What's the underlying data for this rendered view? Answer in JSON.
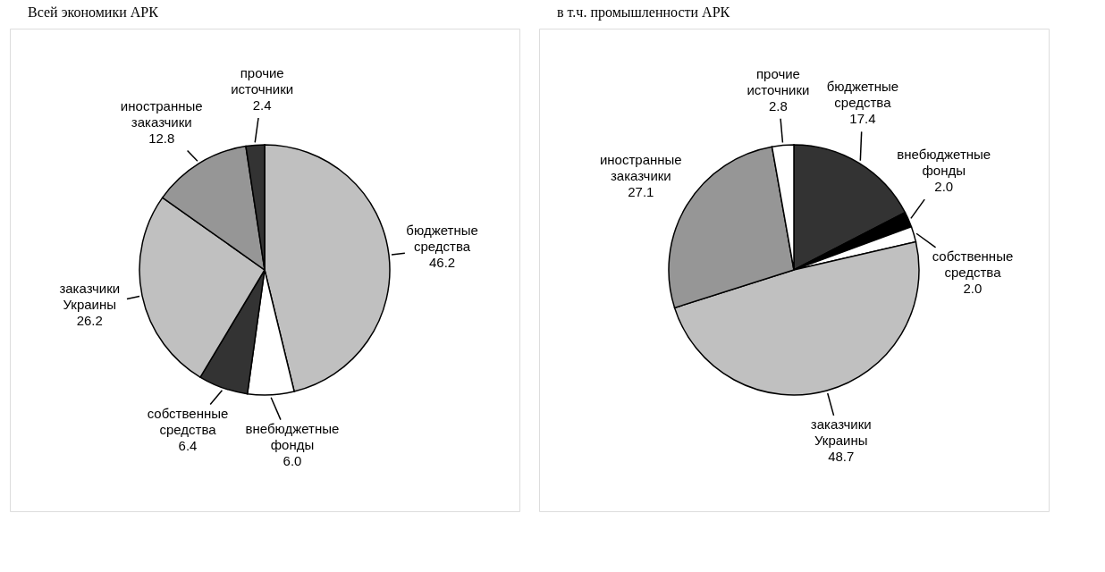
{
  "chart_data": [
    {
      "type": "pie",
      "title": "Всей экономики АРК",
      "categories": [
        "бюджетные средства",
        "внебюджетные фонды",
        "собственные средства",
        "заказчики Украины",
        "иностранные заказчики",
        "прочие источники"
      ],
      "values": [
        46.2,
        6.0,
        6.4,
        26.2,
        12.8,
        2.4
      ],
      "value_labels": [
        "46.2",
        "6.0",
        "6.4",
        "26.2",
        "12.8",
        "2.4"
      ],
      "colors": [
        "#c0c0c0",
        "#ffffff",
        "#333333",
        "#c0c0c0",
        "#969696",
        "#333333"
      ]
    },
    {
      "type": "pie",
      "title": "в т.ч. промышленности АРК",
      "categories": [
        "бюджетные средства",
        "внебюджетные фонды",
        "собственные средства",
        "заказчики Украины",
        "иностранные заказчики",
        "прочие источники"
      ],
      "values": [
        17.4,
        2.0,
        2.0,
        48.7,
        27.1,
        2.8
      ],
      "value_labels": [
        "17.4",
        "2.0",
        "2.0",
        "48.7",
        "27.1",
        "2.8"
      ],
      "colors": [
        "#333333",
        "#000000",
        "#ffffff",
        "#c0c0c0",
        "#969696",
        "#ffffff"
      ]
    }
  ]
}
